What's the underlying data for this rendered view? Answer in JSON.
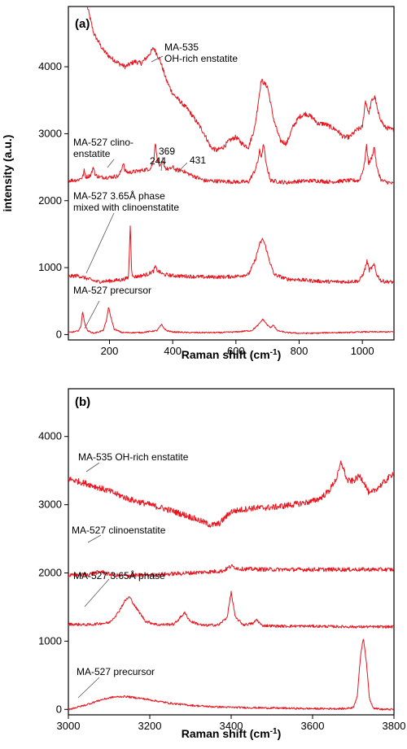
{
  "chart_data": [
    {
      "type": "line",
      "panel_label": "(a)",
      "xlabel": "Raman shift (cm",
      "xlabel_sup": "-1",
      "xlabel_end": ")",
      "ylabel": "intensity (a.u.)",
      "xlim": [
        70,
        1100
      ],
      "ylim": [
        -80,
        4900
      ],
      "xticks": [
        200,
        400,
        600,
        800,
        1000
      ],
      "yticks": [
        0,
        1000,
        2000,
        3000,
        4000
      ],
      "line_color": "#e8141e",
      "series": [
        {
          "name": "MA-535 OH-rich enstatite",
          "noise": 35,
          "x": [
            130,
            150,
            180,
            200,
            230,
            250,
            280,
            300,
            320,
            340,
            360,
            380,
            400,
            420,
            450,
            480,
            500,
            520,
            540,
            560,
            580,
            600,
            620,
            640,
            660,
            680,
            700,
            720,
            740,
            760,
            780,
            800,
            820,
            840,
            860,
            880,
            900,
            920,
            940,
            960,
            980,
            1000,
            1010,
            1020,
            1030,
            1040,
            1050,
            1070,
            1100
          ],
          "y": [
            4900,
            4500,
            4250,
            4150,
            4050,
            4000,
            4080,
            4050,
            4150,
            4280,
            4100,
            3800,
            3600,
            3500,
            3350,
            3150,
            3000,
            2800,
            2750,
            2800,
            2900,
            2950,
            2850,
            2800,
            3100,
            3800,
            3700,
            3200,
            2900,
            2850,
            3100,
            3250,
            3300,
            3250,
            3150,
            3150,
            3100,
            3050,
            2950,
            2950,
            3050,
            3100,
            3500,
            3300,
            3500,
            3550,
            3300,
            3100,
            3050
          ]
        },
        {
          "name": "MA-527 clinoenstatite",
          "noise": 30,
          "x": [
            70,
            100,
            115,
            120,
            125,
            140,
            150,
            155,
            170,
            200,
            230,
            240,
            244,
            248,
            260,
            300,
            330,
            340,
            345,
            350,
            360,
            369,
            378,
            390,
            400,
            410,
            431,
            450,
            500,
            550,
            600,
            640,
            660,
            670,
            675,
            680,
            688,
            695,
            710,
            760,
            800,
            850,
            900,
            950,
            990,
            1005,
            1013,
            1020,
            1030,
            1038,
            1045,
            1060,
            1100
          ],
          "y": [
            2300,
            2310,
            2350,
            2450,
            2350,
            2380,
            2500,
            2380,
            2350,
            2350,
            2370,
            2500,
            2580,
            2450,
            2420,
            2450,
            2480,
            2600,
            2880,
            2650,
            2500,
            2580,
            2480,
            2470,
            2500,
            2460,
            2450,
            2400,
            2300,
            2290,
            2280,
            2280,
            2450,
            2600,
            2750,
            2650,
            2850,
            2550,
            2300,
            2270,
            2290,
            2300,
            2280,
            2300,
            2300,
            2500,
            2820,
            2550,
            2650,
            2810,
            2500,
            2300,
            2250
          ]
        },
        {
          "name": "MA-527 3.65Å phase mixed with clinoenstatite",
          "noise": 28,
          "x": [
            70,
            100,
            120,
            140,
            160,
            200,
            240,
            260,
            266,
            270,
            274,
            290,
            320,
            340,
            345,
            350,
            370,
            400,
            450,
            500,
            550,
            600,
            640,
            660,
            675,
            685,
            695,
            700,
            720,
            760,
            800,
            850,
            900,
            950,
            990,
            1005,
            1015,
            1022,
            1030,
            1038,
            1045,
            1060,
            1100
          ],
          "y": [
            870,
            880,
            850,
            820,
            790,
            800,
            820,
            850,
            1650,
            980,
            860,
            870,
            900,
            950,
            1020,
            960,
            900,
            880,
            870,
            860,
            860,
            870,
            900,
            1100,
            1350,
            1430,
            1300,
            1200,
            900,
            830,
            820,
            800,
            790,
            790,
            800,
            930,
            1100,
            960,
            1000,
            1040,
            900,
            800,
            780
          ]
        },
        {
          "name": "MA-527 precursor",
          "noise": 10,
          "x": [
            70,
            100,
            110,
            115,
            120,
            130,
            150,
            180,
            190,
            197,
            205,
            215,
            240,
            300,
            350,
            365,
            370,
            380,
            400,
            450,
            500,
            550,
            600,
            650,
            670,
            685,
            700,
            710,
            718,
            730,
            760,
            800,
            850,
            900,
            950,
            1000,
            1050,
            1100
          ],
          "y": [
            30,
            50,
            120,
            360,
            200,
            60,
            20,
            60,
            200,
            410,
            250,
            80,
            30,
            30,
            60,
            150,
            110,
            60,
            40,
            30,
            30,
            30,
            40,
            60,
            140,
            230,
            140,
            100,
            150,
            60,
            30,
            20,
            20,
            30,
            30,
            40,
            40,
            40
          ]
        }
      ],
      "annotations": [
        {
          "lines": [
            "MA-535",
            "OH-rich enstatite"
          ]
        },
        {
          "lines": [
            "MA-527 clino-",
            "enstatite"
          ]
        },
        {
          "lines": [
            "244"
          ]
        },
        {
          "lines": [
            "369"
          ]
        },
        {
          "lines": [
            "431"
          ]
        },
        {
          "lines": [
            "MA-527 3.65Å phase",
            "mixed with clinoenstatite"
          ]
        },
        {
          "lines": [
            "MA-527 precursor"
          ]
        }
      ]
    },
    {
      "type": "line",
      "panel_label": "(b)",
      "xlabel": "Raman shift (cm",
      "xlabel_sup": "-1",
      "xlabel_end": ")",
      "ylabel": "",
      "xlim": [
        3000,
        3800
      ],
      "ylim": [
        -80,
        4700
      ],
      "xticks": [
        3000,
        3200,
        3400,
        3600,
        3800
      ],
      "yticks": [
        0,
        1000,
        2000,
        3000,
        4000
      ],
      "line_color": "#e8141e",
      "series": [
        {
          "name": "MA-535 OH-rich enstatite",
          "noise": 45,
          "x": [
            3000,
            3050,
            3100,
            3150,
            3200,
            3250,
            3300,
            3330,
            3350,
            3370,
            3400,
            3450,
            3500,
            3550,
            3600,
            3620,
            3640,
            3660,
            3670,
            3675,
            3685,
            3700,
            3715,
            3725,
            3740,
            3760,
            3780,
            3800
          ],
          "y": [
            3380,
            3300,
            3200,
            3080,
            3000,
            2920,
            2820,
            2750,
            2700,
            2720,
            2900,
            2950,
            2960,
            3000,
            3050,
            3100,
            3200,
            3400,
            3620,
            3550,
            3350,
            3350,
            3420,
            3350,
            3150,
            3250,
            3350,
            3480
          ]
        },
        {
          "name": "MA-527 clinoenstatite",
          "noise": 30,
          "x": [
            3000,
            3050,
            3080,
            3100,
            3130,
            3200,
            3300,
            3380,
            3400,
            3420,
            3500,
            3600,
            3700,
            3800
          ],
          "y": [
            1960,
            1980,
            2020,
            1980,
            1960,
            1970,
            2000,
            2030,
            2100,
            2060,
            2050,
            2050,
            2050,
            2050
          ]
        },
        {
          "name": "MA-527 3.65Å phase",
          "noise": 20,
          "x": [
            3000,
            3050,
            3080,
            3100,
            3120,
            3140,
            3150,
            3165,
            3190,
            3220,
            3260,
            3280,
            3285,
            3300,
            3330,
            3370,
            3390,
            3400,
            3410,
            3430,
            3455,
            3462,
            3475,
            3520,
            3600,
            3700,
            3800
          ],
          "y": [
            1250,
            1240,
            1260,
            1270,
            1400,
            1600,
            1650,
            1500,
            1290,
            1240,
            1250,
            1380,
            1420,
            1290,
            1230,
            1240,
            1350,
            1720,
            1350,
            1240,
            1260,
            1320,
            1230,
            1220,
            1220,
            1210,
            1210
          ]
        },
        {
          "name": "MA-527 precursor",
          "noise": 14,
          "x": [
            3000,
            3040,
            3080,
            3110,
            3140,
            3180,
            3250,
            3300,
            3350,
            3400,
            3500,
            3600,
            3680,
            3700,
            3710,
            3718,
            3725,
            3732,
            3740,
            3750,
            3770,
            3800
          ],
          "y": [
            0,
            60,
            140,
            180,
            190,
            160,
            90,
            60,
            40,
            30,
            20,
            10,
            10,
            30,
            200,
            800,
            1050,
            700,
            150,
            20,
            0,
            0
          ]
        }
      ],
      "annotations": [
        {
          "lines": [
            "MA-535 OH-rich enstatite"
          ]
        },
        {
          "lines": [
            "MA-527 clinoenstatite"
          ]
        },
        {
          "lines": [
            "MA-527 3.65Å phase"
          ]
        },
        {
          "lines": [
            "MA-527 precursor"
          ]
        }
      ]
    }
  ]
}
